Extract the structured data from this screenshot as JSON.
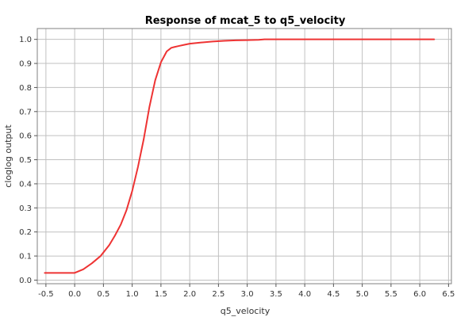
{
  "chart_data": {
    "type": "line",
    "title": "Response of mcat_5 to q5_velocity",
    "xlabel": "q5_velocity",
    "ylabel": "cloglog output",
    "xlim": [
      -0.65,
      6.55
    ],
    "ylim": [
      -0.015,
      1.045
    ],
    "x_ticks": [
      -0.5,
      0.0,
      0.5,
      1.0,
      1.5,
      2.0,
      2.5,
      3.0,
      3.5,
      4.0,
      4.5,
      5.0,
      5.5,
      6.0,
      6.5
    ],
    "x_tick_labels": [
      "-0.5",
      "0.0",
      "0.5",
      "1.0",
      "1.5",
      "2.0",
      "2.5",
      "3.0",
      "3.5",
      "4.0",
      "4.5",
      "5.0",
      "5.5",
      "6.0",
      "6.5"
    ],
    "y_ticks": [
      0.0,
      0.1,
      0.2,
      0.3,
      0.4,
      0.5,
      0.6,
      0.7,
      0.8,
      0.9,
      1.0
    ],
    "y_tick_labels": [
      "0.0",
      "0.1",
      "0.2",
      "0.3",
      "0.4",
      "0.5",
      "0.6",
      "0.7",
      "0.8",
      "0.9",
      "1.0"
    ],
    "grid": true,
    "legend": "none",
    "series_color": "#ee3333",
    "series": [
      {
        "x": [
          -0.52,
          -0.3,
          -0.1,
          0.0,
          0.15,
          0.3,
          0.45,
          0.6,
          0.7,
          0.8,
          0.9,
          1.0,
          1.1,
          1.2,
          1.3,
          1.4,
          1.5,
          1.6,
          1.68,
          1.73,
          1.8,
          1.9,
          2.0,
          2.2,
          2.4,
          2.6,
          2.8,
          3.0,
          3.2,
          3.3,
          3.6,
          4.0,
          4.5,
          5.0,
          5.5,
          6.0,
          6.25
        ],
        "y": [
          0.03,
          0.03,
          0.03,
          0.03,
          0.045,
          0.07,
          0.1,
          0.145,
          0.185,
          0.23,
          0.29,
          0.37,
          0.47,
          0.585,
          0.72,
          0.83,
          0.905,
          0.95,
          0.965,
          0.968,
          0.972,
          0.977,
          0.982,
          0.987,
          0.991,
          0.994,
          0.996,
          0.997,
          0.998,
          1.0,
          1.0,
          1.0,
          1.0,
          1.0,
          1.0,
          1.0,
          1.0
        ]
      }
    ]
  }
}
